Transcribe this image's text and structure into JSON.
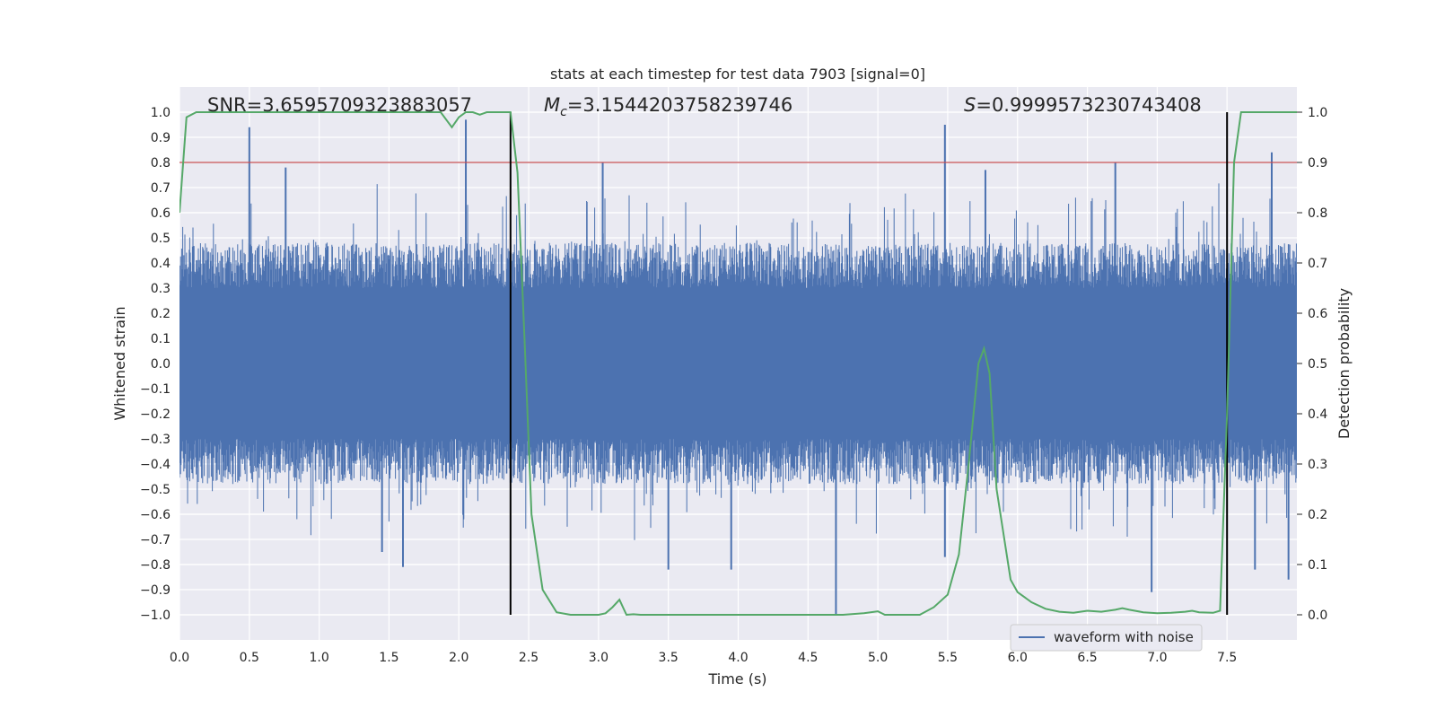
{
  "chart_data": {
    "type": "line",
    "title": "stats at each timestep for test data 7903 [signal=0]",
    "xlabel": "Time (s)",
    "ylabel_left": "Whitened strain",
    "ylabel_right": "Detection probability",
    "xlim": [
      0.0,
      8.0
    ],
    "ylim_left": [
      -1.1,
      1.1
    ],
    "ylim_right": [
      -0.05,
      1.05
    ],
    "x_ticks": [
      "0.0",
      "0.5",
      "1.0",
      "1.5",
      "2.0",
      "2.5",
      "3.0",
      "3.5",
      "4.0",
      "4.5",
      "5.0",
      "5.5",
      "6.0",
      "6.5",
      "7.0",
      "7.5"
    ],
    "y_left_ticks": [
      "1.0",
      "0.9",
      "0.8",
      "0.7",
      "0.6",
      "0.5",
      "0.4",
      "0.3",
      "0.2",
      "0.1",
      "0.0",
      "-0.1",
      "-0.2",
      "-0.3",
      "-0.4",
      "-0.5",
      "-0.6",
      "-0.7",
      "-0.8",
      "-0.9",
      "-1.0"
    ],
    "y_right_ticks": [
      "1.0",
      "0.9",
      "0.8",
      "0.7",
      "0.6",
      "0.5",
      "0.4",
      "0.3",
      "0.2",
      "0.1",
      "0.0"
    ],
    "grid": true,
    "annotations": {
      "snr": "SNR=3.6595709323883057",
      "mc_symbol": "M",
      "mc_sub": "c",
      "mc_value": "=3.1544203758239746",
      "s_symbol": "S",
      "s_value": "=0.9999573230743408"
    },
    "legend": {
      "position": "bottom-right",
      "entries": [
        "waveform with noise"
      ]
    },
    "threshold_right": 0.9,
    "vertical_markers_x": [
      2.37,
      7.5
    ],
    "waveform_noise_envelope": {
      "typical_abs": 0.4,
      "peak_abs": 0.95
    },
    "waveform_spikes": [
      {
        "x": 0.5,
        "y": 0.94
      },
      {
        "x": 2.05,
        "y": 0.97
      },
      {
        "x": 5.48,
        "y": 0.95
      },
      {
        "x": 0.76,
        "y": 0.78
      },
      {
        "x": 7.82,
        "y": 0.84
      },
      {
        "x": 5.77,
        "y": 0.77
      },
      {
        "x": 6.7,
        "y": 0.8
      },
      {
        "x": 3.03,
        "y": 0.8
      },
      {
        "x": 4.7,
        "y": -1.0
      },
      {
        "x": 1.6,
        "y": -0.81
      },
      {
        "x": 6.96,
        "y": -0.91
      },
      {
        "x": 3.5,
        "y": -0.82
      },
      {
        "x": 3.95,
        "y": -0.82
      },
      {
        "x": 7.94,
        "y": -0.86
      },
      {
        "x": 7.7,
        "y": -0.82
      },
      {
        "x": 1.45,
        "y": -0.75
      },
      {
        "x": 5.48,
        "y": -0.77
      }
    ],
    "series": [
      {
        "name": "waveform with noise",
        "color": "#4c72b0",
        "note": "dense whitened strain noise drawn as vertical lines"
      },
      {
        "color": "#55a868",
        "axis": "right",
        "x": [
          0.0,
          0.05,
          0.12,
          0.25,
          0.5,
          0.75,
          1.0,
          1.25,
          1.5,
          1.75,
          1.87,
          1.95,
          2.0,
          2.05,
          2.1,
          2.15,
          2.2,
          2.3,
          2.37,
          2.42,
          2.47,
          2.52,
          2.6,
          2.7,
          2.8,
          3.0,
          3.05,
          3.1,
          3.15,
          3.2,
          3.25,
          3.3,
          3.4,
          3.5,
          3.75,
          4.0,
          4.25,
          4.5,
          4.75,
          4.9,
          5.0,
          5.05,
          5.1,
          5.2,
          5.3,
          5.4,
          5.5,
          5.58,
          5.65,
          5.72,
          5.76,
          5.8,
          5.85,
          5.95,
          6.0,
          6.1,
          6.2,
          6.3,
          6.4,
          6.5,
          6.6,
          6.7,
          6.75,
          6.8,
          6.9,
          7.0,
          7.1,
          7.2,
          7.25,
          7.3,
          7.4,
          7.45,
          7.5,
          7.55,
          7.6,
          7.7,
          8.0
        ],
        "values": [
          0.8,
          0.99,
          1.0,
          1.0,
          1.0,
          1.0,
          1.0,
          1.0,
          1.0,
          1.0,
          1.0,
          0.97,
          0.99,
          1.0,
          1.0,
          0.995,
          1.0,
          1.0,
          1.0,
          0.88,
          0.55,
          0.2,
          0.05,
          0.005,
          0.0,
          0.0,
          0.003,
          0.015,
          0.03,
          0.0,
          0.001,
          0.0,
          0.0,
          0.0,
          0.0,
          0.0,
          0.0,
          0.0,
          0.0,
          0.003,
          0.007,
          0.0,
          0.0,
          0.0,
          0.0,
          0.015,
          0.04,
          0.12,
          0.3,
          0.5,
          0.53,
          0.48,
          0.25,
          0.07,
          0.045,
          0.025,
          0.012,
          0.006,
          0.004,
          0.008,
          0.006,
          0.01,
          0.013,
          0.01,
          0.005,
          0.003,
          0.004,
          0.006,
          0.008,
          0.005,
          0.004,
          0.008,
          0.4,
          0.9,
          1.0,
          1.0,
          1.0
        ]
      }
    ],
    "colors": {
      "background": "#eaeaf2",
      "grid": "#ffffff",
      "threshold": "#c44e52",
      "marker": "#000000",
      "noise": "#4c72b0",
      "probability": "#55a868"
    }
  }
}
